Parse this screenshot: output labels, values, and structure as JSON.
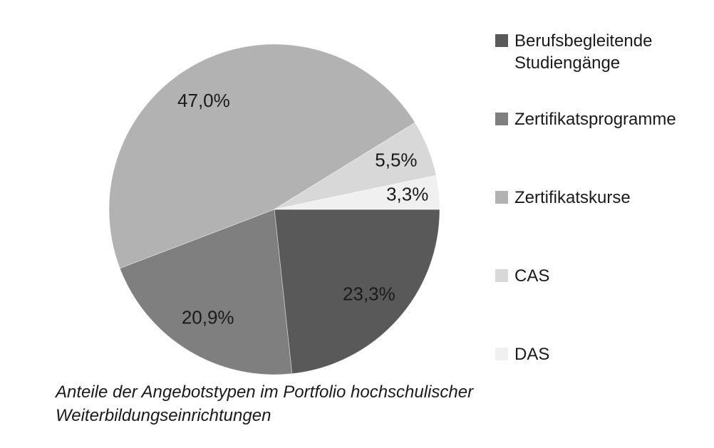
{
  "chart_data": {
    "type": "pie",
    "title": "",
    "caption_lines": [
      "Anteile der Angebotstypen im Portfolio hochschulischer",
      "Weiterbildungseinrichtungen"
    ],
    "unit": "%",
    "decimal_separator": ",",
    "start_angle": "east",
    "direction": "clockwise",
    "background": "#ffffff",
    "text_color": "#1a1a1a",
    "slices": [
      {
        "label": "Berufsbegleitende Studiengänge",
        "value": 23.3,
        "display": "23,3%",
        "color": "#595959"
      },
      {
        "label": "Zertifikatsprogramme",
        "value": 20.9,
        "display": "20,9%",
        "color": "#7f7f7f"
      },
      {
        "label": "Zertifikatskurse",
        "value": 47.0,
        "display": "47,0%",
        "color": "#b2b2b2"
      },
      {
        "label": "CAS",
        "value": 5.5,
        "display": "5,5%",
        "color": "#d8d8d8"
      },
      {
        "label": "DAS",
        "value": 3.3,
        "display": "3,3%",
        "color": "#f0f0f0"
      }
    ],
    "legend": {
      "position": "right",
      "items": [
        {
          "lines": [
            "Berufsbegleitende",
            "Studiengänge"
          ],
          "color": "#595959"
        },
        {
          "lines": [
            "Zertifikatsprogramme"
          ],
          "color": "#7f7f7f"
        },
        {
          "lines": [
            "Zertifikatskurse"
          ],
          "color": "#b2b2b2"
        },
        {
          "lines": [
            "CAS"
          ],
          "color": "#d8d8d8"
        },
        {
          "lines": [
            "DAS"
          ],
          "color": "#f0f0f0"
        }
      ]
    }
  }
}
